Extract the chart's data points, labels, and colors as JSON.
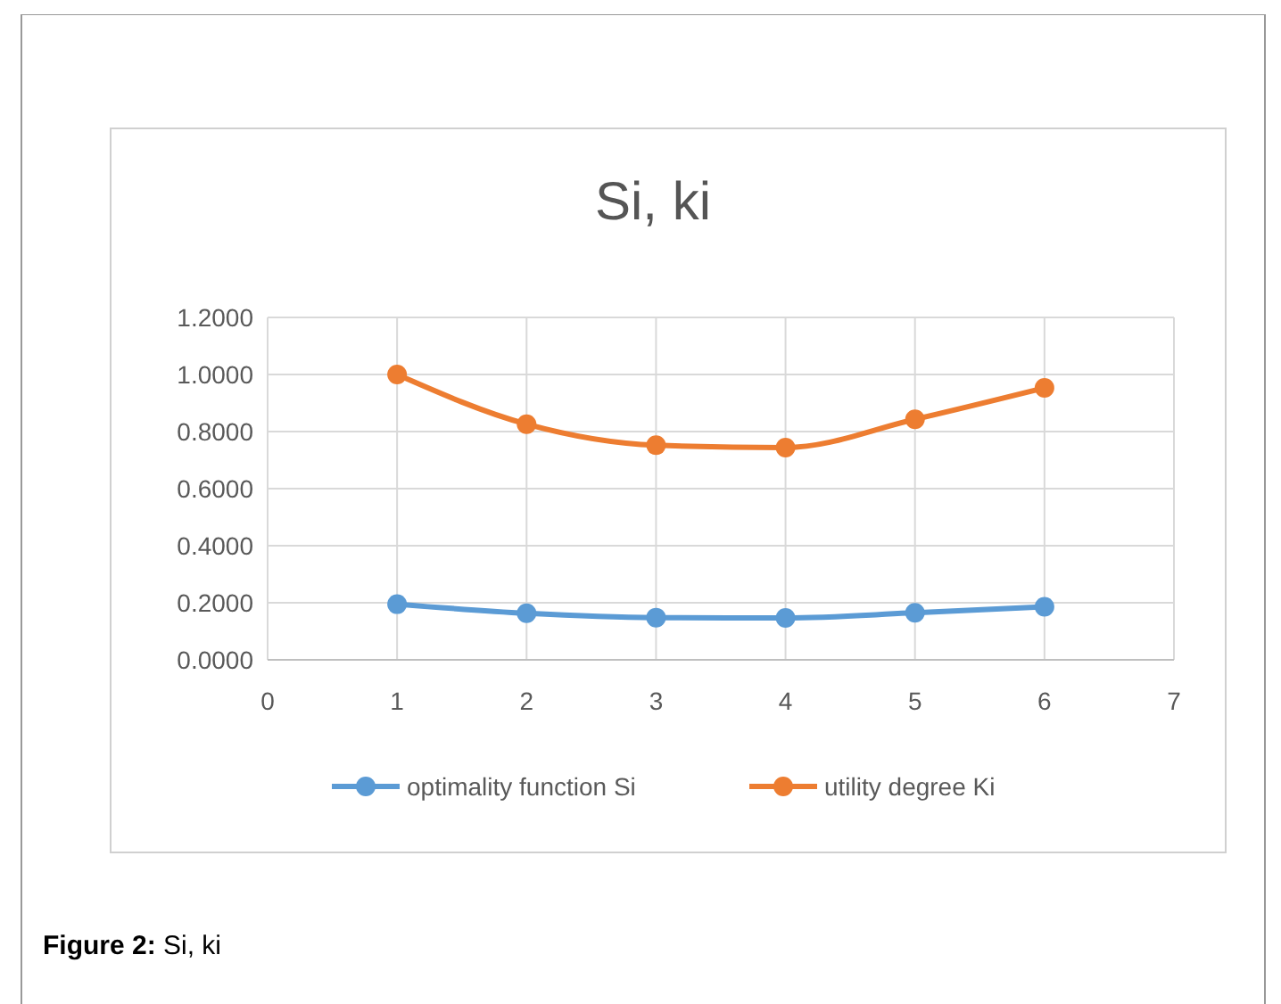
{
  "chart_data": {
    "type": "line",
    "title": "Si, ki",
    "x": [
      1,
      2,
      3,
      4,
      5,
      6
    ],
    "series": [
      {
        "name": "optimality function Si",
        "color": "#5b9bd5",
        "values": [
          0.195,
          0.163,
          0.148,
          0.147,
          0.165,
          0.186
        ]
      },
      {
        "name": "utility degree Ki",
        "color": "#ed7d31",
        "values": [
          1.0,
          0.826,
          0.752,
          0.744,
          0.843,
          0.953
        ]
      }
    ],
    "xlim": [
      0,
      7
    ],
    "xticks": [
      0,
      1,
      2,
      3,
      4,
      5,
      6,
      7
    ],
    "ylim": [
      0,
      1.2
    ],
    "yticks": [
      {
        "value": 0,
        "label": "0.0000"
      },
      {
        "value": 0.2,
        "label": "0.2000"
      },
      {
        "value": 0.4,
        "label": "0.4000"
      },
      {
        "value": 0.6,
        "label": "0.6000"
      },
      {
        "value": 0.8,
        "label": "0.8000"
      },
      {
        "value": 1,
        "label": "1.0000"
      },
      {
        "value": 1.2,
        "label": "1.2000"
      }
    ],
    "grid": true,
    "legend": "bottom",
    "marker": "circle",
    "line_style": "solid",
    "annotations": [
      "Figure 2: Si, ki"
    ]
  }
}
